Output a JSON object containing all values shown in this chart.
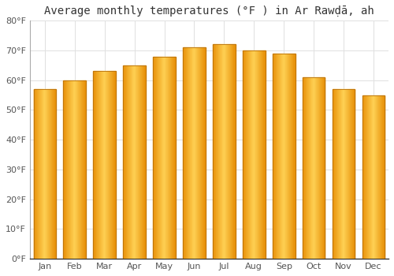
{
  "title": "Average monthly temperatures (°F ) in Ar Rawḍā, ah",
  "months": [
    "Jan",
    "Feb",
    "Mar",
    "Apr",
    "May",
    "Jun",
    "Jul",
    "Aug",
    "Sep",
    "Oct",
    "Nov",
    "Dec"
  ],
  "values": [
    57,
    60,
    63,
    65,
    68,
    71,
    72,
    70,
    69,
    61,
    57,
    55
  ],
  "bar_color_left": "#E8920A",
  "bar_color_center": "#FFD055",
  "bar_color_right": "#E8920A",
  "background_color": "#FFFFFF",
  "grid_color": "#E0E0E0",
  "ylim": [
    0,
    80
  ],
  "ytick_step": 10,
  "title_fontsize": 10,
  "tick_fontsize": 8,
  "bar_width": 0.75
}
